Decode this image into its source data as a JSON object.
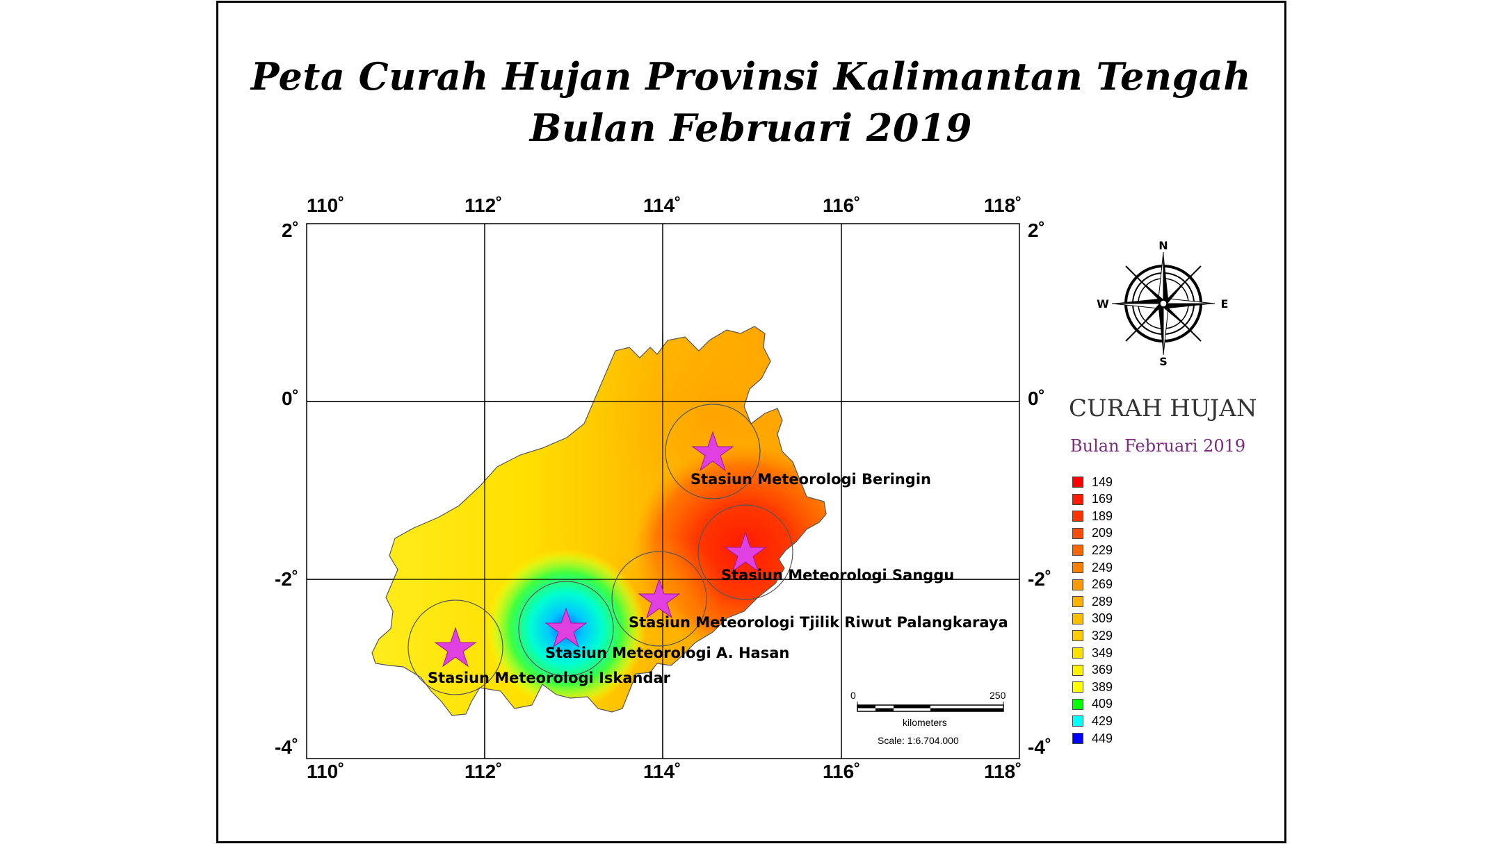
{
  "title": {
    "line1": "Peta Curah Hujan Provinsi Kalimantan Tengah",
    "line2": "Bulan Februari 2019"
  },
  "axes": {
    "top_ticks": [
      "110˚",
      "112˚",
      "114˚",
      "116˚",
      "118˚"
    ],
    "bottom_ticks": [
      "110˚",
      "112˚",
      "114˚",
      "116˚",
      "118˚"
    ],
    "left_ticks": [
      "2˚",
      "0˚",
      "-2˚",
      "-4˚"
    ],
    "right_ticks": [
      "2˚",
      "0˚",
      "-2˚",
      "-4˚"
    ]
  },
  "compass": {
    "n": "N",
    "s": "S",
    "e": "E",
    "w": "W"
  },
  "legend": {
    "title": "CURAH HUJAN",
    "subtitle": "Bulan Februari 2019",
    "items": [
      {
        "label": "149",
        "color": "#ff0000"
      },
      {
        "label": "169",
        "color": "#ff1a00"
      },
      {
        "label": "189",
        "color": "#ff3300"
      },
      {
        "label": "209",
        "color": "#ff4d00"
      },
      {
        "label": "229",
        "color": "#ff6600"
      },
      {
        "label": "249",
        "color": "#ff7f00"
      },
      {
        "label": "269",
        "color": "#ff9900"
      },
      {
        "label": "289",
        "color": "#ffb300"
      },
      {
        "label": "309",
        "color": "#ffbf00"
      },
      {
        "label": "329",
        "color": "#ffcc00"
      },
      {
        "label": "349",
        "color": "#ffe000"
      },
      {
        "label": "369",
        "color": "#fff200"
      },
      {
        "label": "389",
        "color": "#ffff00"
      },
      {
        "label": "409",
        "color": "#00ff00"
      },
      {
        "label": "429",
        "color": "#00ffff"
      },
      {
        "label": "449",
        "color": "#0000ff"
      }
    ]
  },
  "stations": [
    {
      "name": "Stasiun Meteorologi Beringin"
    },
    {
      "name": "Stasiun Meteorologi Sanggu"
    },
    {
      "name": "Stasiun Meteorologi  Tjilik Riwut Palangkaraya"
    },
    {
      "name": "Stasiun Meteorologi A. Hasan"
    },
    {
      "name": "Stasiun Meteorologi Iskandar"
    }
  ],
  "scale_bar": {
    "start": "0",
    "end": "250",
    "unit": "kilometers",
    "scale": "Scale: 1:6.704.000"
  },
  "colors": {
    "star": "#e040e0",
    "frame": "#000000"
  }
}
